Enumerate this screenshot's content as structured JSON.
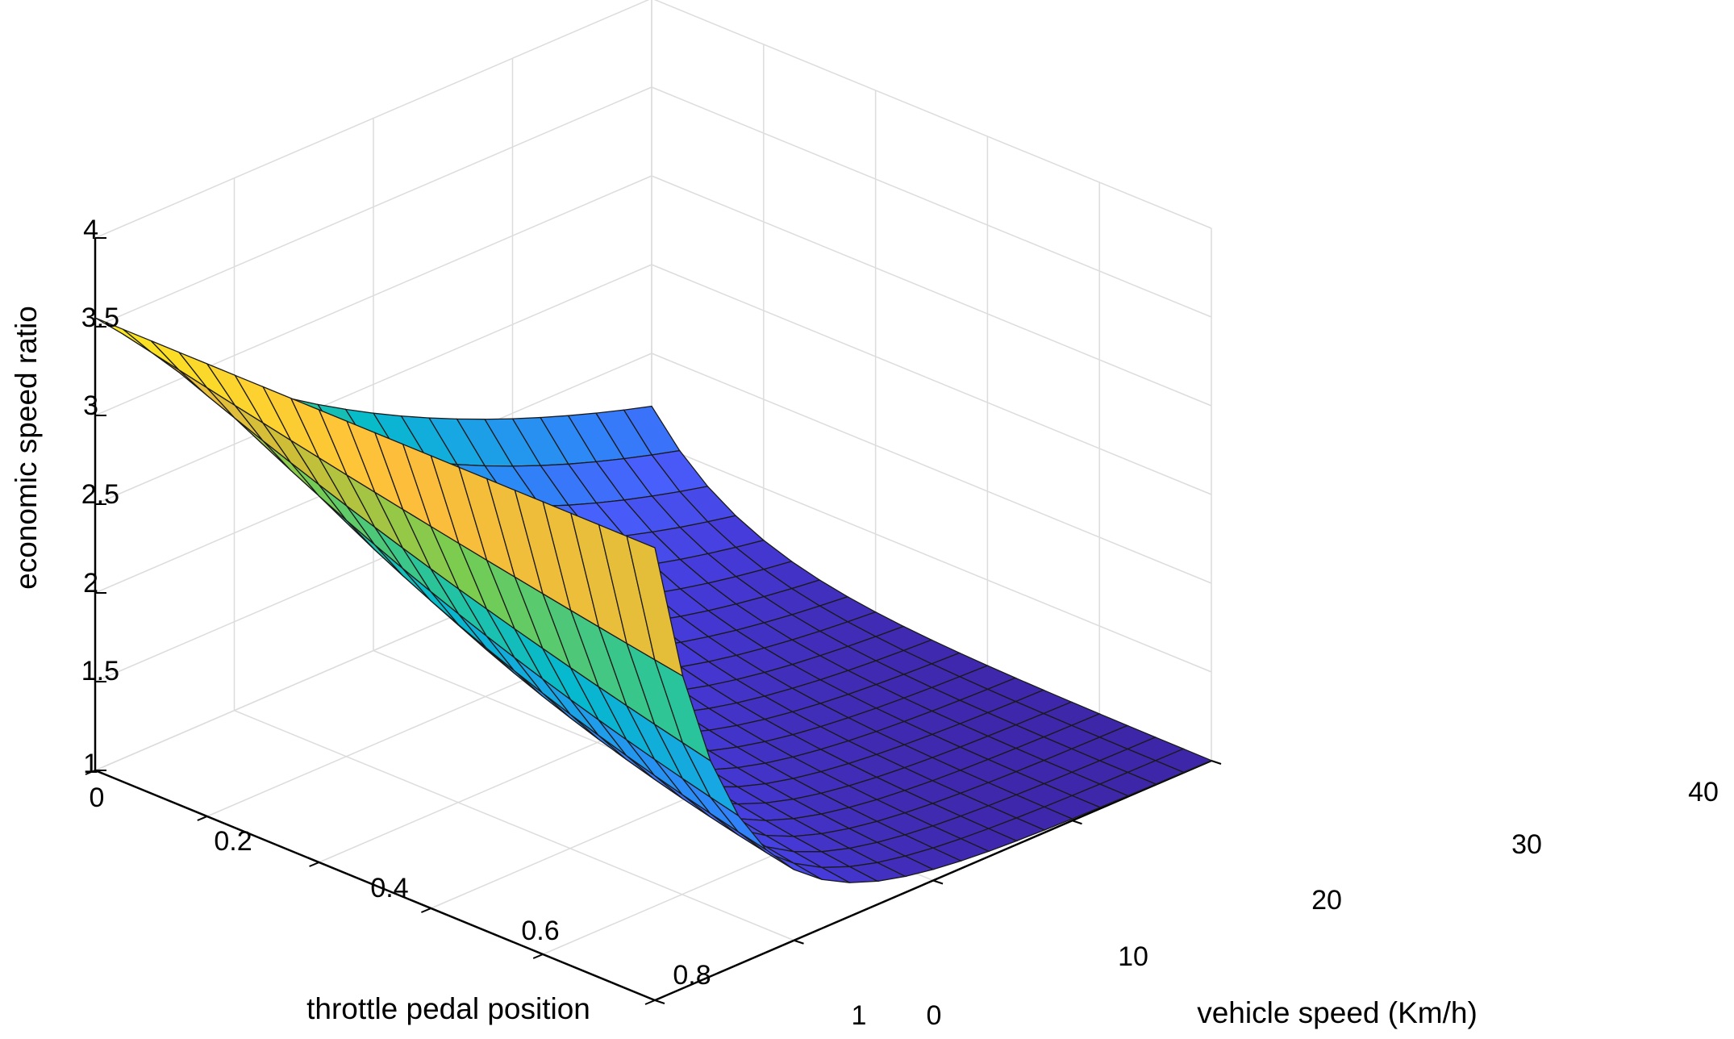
{
  "chart_data": {
    "type": "surface",
    "title": "",
    "xlabel": "throttle pedal position",
    "ylabel": "vehicle speed (Km/h)",
    "zlabel": "economic speed ratio",
    "x_ticks": [
      "0",
      "0.2",
      "0.4",
      "0.6",
      "0.8",
      "1"
    ],
    "y_ticks": [
      "0",
      "10",
      "20",
      "30",
      "40"
    ],
    "z_ticks": [
      "1",
      "1.5",
      "2",
      "2.5",
      "3",
      "3.5",
      "4"
    ],
    "xlim": [
      0,
      1
    ],
    "ylim": [
      0,
      40
    ],
    "zlim": [
      1,
      4
    ],
    "grid": true,
    "colormap": "parula",
    "grid_size": {
      "throttle_points": 21,
      "speed_points": 21
    },
    "z_description": "economic speed ratio stays near 3.55 at 0 Km/h for all throttle positions and decays towards 1 as vehicle speed rises; the decay is slower for higher throttle",
    "z_at_zero_speed": 3.55,
    "z_min": 1.0
  }
}
